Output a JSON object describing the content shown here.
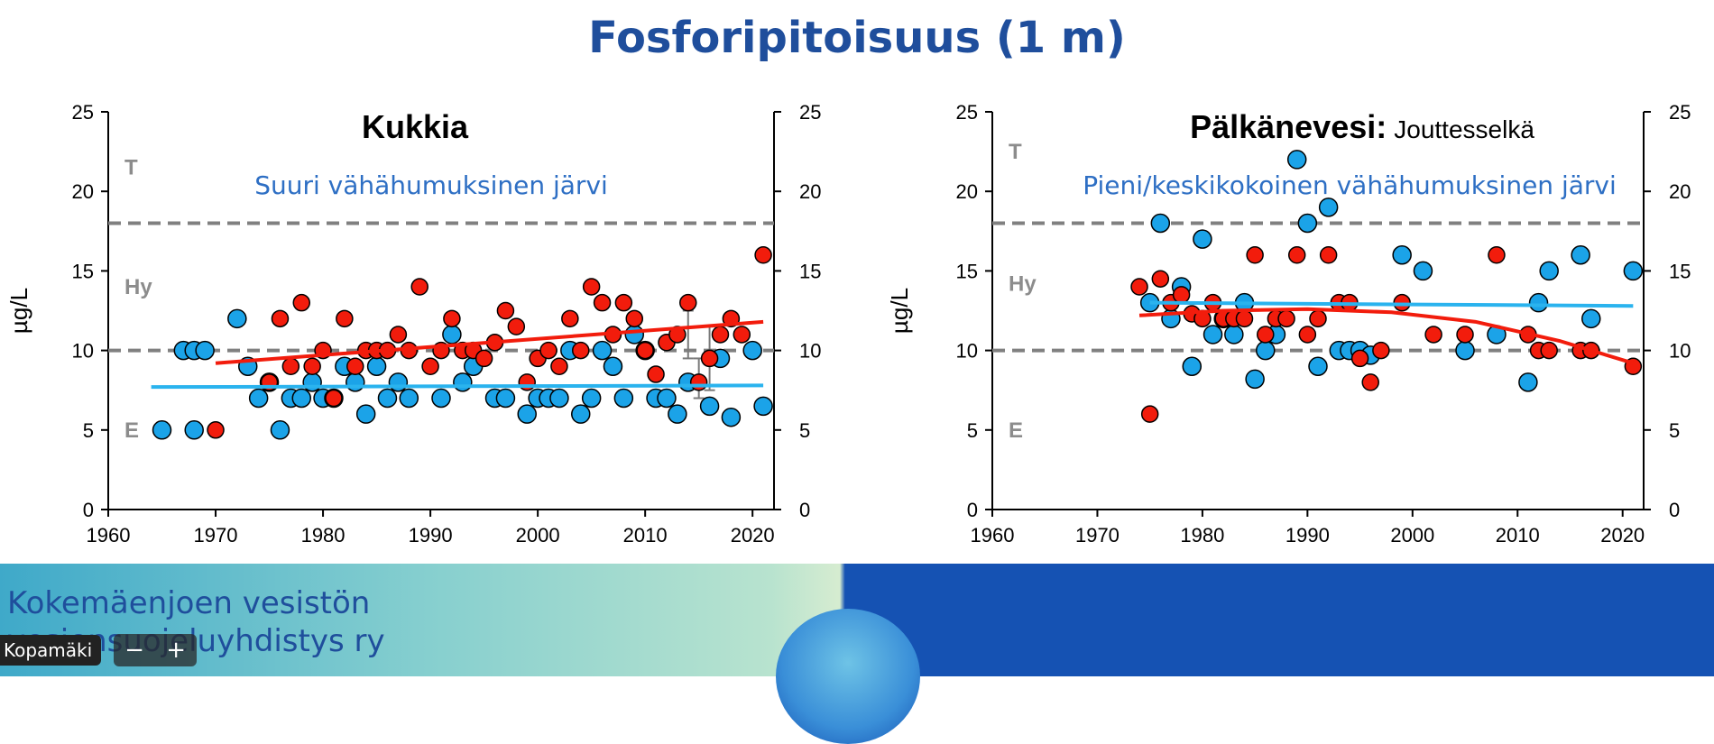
{
  "slide": {
    "title": "Fosforipitoisuus (1 m)",
    "footer_org_line1": "Kokemäenjoen vesistön",
    "footer_org_line2": "vesiensuojeluyhdistys ry",
    "user_label": "Kopamäki",
    "zoom_out_label": "−",
    "zoom_in_label": "+"
  },
  "colors": {
    "title": "#1f4e9c",
    "subtitle": "#2e6fc4",
    "red_series": "#f21c0c",
    "blue_series": "#1ba3e8",
    "red_trend": "#f21c0c",
    "blue_trend": "#2ab3ee",
    "threshold_line": "#808080",
    "class_label": "#8c8c8c"
  },
  "chart_data": [
    {
      "type": "scatter",
      "title": "Kukkia",
      "title_suffix": "",
      "subtitle": "Suuri vähähumuksinen järvi",
      "ylabel": "µg/L",
      "xlim": [
        1960,
        2022
      ],
      "ylim": [
        0,
        25
      ],
      "x_ticks": [
        1960,
        1970,
        1980,
        1990,
        2000,
        2010,
        2020
      ],
      "y_ticks": [
        0,
        5,
        10,
        15,
        20,
        25
      ],
      "dual_y_axis": true,
      "class_labels": [
        {
          "label": "T",
          "y": 21.5
        },
        {
          "label": "Hy",
          "y": 14
        },
        {
          "label": "E",
          "y": 5
        }
      ],
      "thresholds": [
        18,
        10
      ],
      "trend_lines": [
        {
          "series": "blue",
          "x": [
            1964,
            2021
          ],
          "y": [
            7.7,
            7.8
          ]
        },
        {
          "series": "red",
          "x": [
            1970,
            2021
          ],
          "y": [
            9.2,
            11.8
          ]
        }
      ],
      "error_bars": [
        {
          "x": 2014,
          "low": 9.5,
          "high": 12.5
        },
        {
          "x": 2015,
          "low": 7.0,
          "high": 9.5
        },
        {
          "x": 2016,
          "low": 7.5,
          "high": 11.5
        }
      ],
      "series": [
        {
          "key": "blue",
          "points": [
            [
              1965,
              5
            ],
            [
              1967,
              10
            ],
            [
              1968,
              5
            ],
            [
              1968,
              10
            ],
            [
              1969,
              10
            ],
            [
              1972,
              12
            ],
            [
              1973,
              9
            ],
            [
              1974,
              7
            ],
            [
              1975,
              8
            ],
            [
              1976,
              5
            ],
            [
              1977,
              7
            ],
            [
              1978,
              7
            ],
            [
              1979,
              8
            ],
            [
              1980,
              7
            ],
            [
              1981,
              7
            ],
            [
              1982,
              9
            ],
            [
              1983,
              8
            ],
            [
              1984,
              6
            ],
            [
              1985,
              9
            ],
            [
              1986,
              7
            ],
            [
              1987,
              8
            ],
            [
              1988,
              7
            ],
            [
              1991,
              7
            ],
            [
              1992,
              11
            ],
            [
              1993,
              8
            ],
            [
              1994,
              9
            ],
            [
              1996,
              7
            ],
            [
              1997,
              7
            ],
            [
              1999,
              6
            ],
            [
              2000,
              7
            ],
            [
              2001,
              7
            ],
            [
              2002,
              7
            ],
            [
              2003,
              10
            ],
            [
              2004,
              6
            ],
            [
              2005,
              7
            ],
            [
              2006,
              10
            ],
            [
              2007,
              9
            ],
            [
              2008,
              7
            ],
            [
              2009,
              11
            ],
            [
              2010,
              10
            ],
            [
              2011,
              7
            ],
            [
              2012,
              7
            ],
            [
              2013,
              6
            ],
            [
              2014,
              8
            ],
            [
              2016,
              6.5
            ],
            [
              2017,
              9.5
            ],
            [
              2018,
              5.8
            ],
            [
              2020,
              10
            ],
            [
              2021,
              6.5
            ]
          ]
        },
        {
          "key": "red",
          "points": [
            [
              1970,
              5
            ],
            [
              1975,
              8
            ],
            [
              1976,
              12
            ],
            [
              1977,
              9
            ],
            [
              1978,
              13
            ],
            [
              1979,
              9
            ],
            [
              1980,
              10
            ],
            [
              1981,
              7
            ],
            [
              1982,
              12
            ],
            [
              1983,
              9
            ],
            [
              1984,
              10
            ],
            [
              1985,
              10
            ],
            [
              1986,
              10
            ],
            [
              1987,
              11
            ],
            [
              1988,
              10
            ],
            [
              1989,
              14
            ],
            [
              1990,
              9
            ],
            [
              1991,
              10
            ],
            [
              1992,
              12
            ],
            [
              1993,
              10
            ],
            [
              1994,
              10
            ],
            [
              1995,
              9.5
            ],
            [
              1996,
              10.5
            ],
            [
              1997,
              12.5
            ],
            [
              1998,
              11.5
            ],
            [
              1999,
              8
            ],
            [
              2000,
              9.5
            ],
            [
              2001,
              10
            ],
            [
              2002,
              9
            ],
            [
              2003,
              12
            ],
            [
              2004,
              10
            ],
            [
              2005,
              14
            ],
            [
              2006,
              13
            ],
            [
              2007,
              11
            ],
            [
              2008,
              13
            ],
            [
              2009,
              12
            ],
            [
              2010,
              10
            ],
            [
              2011,
              8.5
            ],
            [
              2012,
              10.5
            ],
            [
              2013,
              11
            ],
            [
              2014,
              13
            ],
            [
              2015,
              8
            ],
            [
              2016,
              9.5
            ],
            [
              2017,
              11
            ],
            [
              2018,
              12
            ],
            [
              2019,
              11
            ],
            [
              2021,
              16
            ]
          ]
        }
      ]
    },
    {
      "type": "scatter",
      "title": "Pälkänevesi:",
      "title_suffix": "Jouttesselkä",
      "subtitle": "Pieni/keskikokoinen vähähumuksinen järvi",
      "ylabel": "µg/L",
      "xlim": [
        1960,
        2022
      ],
      "ylim": [
        0,
        25
      ],
      "x_ticks": [
        1960,
        1970,
        1980,
        1990,
        2000,
        2010,
        2020
      ],
      "y_ticks": [
        0,
        5,
        10,
        15,
        20,
        25
      ],
      "dual_y_axis": true,
      "class_labels": [
        {
          "label": "T",
          "y": 22.5
        },
        {
          "label": "Hy",
          "y": 14.2
        },
        {
          "label": "E",
          "y": 5
        }
      ],
      "thresholds": [
        18,
        10
      ],
      "trend_lines": [
        {
          "series": "blue",
          "x": [
            1975,
            2021
          ],
          "y": [
            13.0,
            12.8
          ]
        },
        {
          "series": "red",
          "x": [
            1974,
            1982,
            1990,
            1998,
            2006,
            2014,
            2021
          ],
          "y": [
            12.2,
            12.5,
            12.6,
            12.4,
            11.8,
            10.6,
            9.2
          ]
        }
      ],
      "error_bars": [],
      "series": [
        {
          "key": "blue",
          "points": [
            [
              1975,
              13
            ],
            [
              1976,
              18
            ],
            [
              1977,
              12
            ],
            [
              1978,
              14
            ],
            [
              1979,
              9
            ],
            [
              1980,
              17
            ],
            [
              1981,
              11
            ],
            [
              1982,
              12
            ],
            [
              1983,
              11
            ],
            [
              1984,
              13
            ],
            [
              1985,
              8.2
            ],
            [
              1986,
              10
            ],
            [
              1987,
              11
            ],
            [
              1989,
              22
            ],
            [
              1990,
              18
            ],
            [
              1991,
              9
            ],
            [
              1992,
              19
            ],
            [
              1993,
              10
            ],
            [
              1994,
              10
            ],
            [
              1995,
              10
            ],
            [
              1996,
              9.7
            ],
            [
              1999,
              16
            ],
            [
              2001,
              15
            ],
            [
              2005,
              10
            ],
            [
              2008,
              11
            ],
            [
              2011,
              8
            ],
            [
              2012,
              13
            ],
            [
              2013,
              15
            ],
            [
              2016,
              16
            ],
            [
              2017,
              12
            ],
            [
              2021,
              15
            ]
          ]
        },
        {
          "key": "red",
          "points": [
            [
              1974,
              14
            ],
            [
              1975,
              6
            ],
            [
              1976,
              14.5
            ],
            [
              1977,
              13
            ],
            [
              1978,
              13.5
            ],
            [
              1979,
              12.3
            ],
            [
              1980,
              12
            ],
            [
              1981,
              13
            ],
            [
              1982,
              12
            ],
            [
              1983,
              12
            ],
            [
              1984,
              12
            ],
            [
              1985,
              16
            ],
            [
              1986,
              11
            ],
            [
              1987,
              12
            ],
            [
              1988,
              12
            ],
            [
              1989,
              16
            ],
            [
              1990,
              11
            ],
            [
              1991,
              12
            ],
            [
              1992,
              16
            ],
            [
              1993,
              13
            ],
            [
              1994,
              13
            ],
            [
              1995,
              9.5
            ],
            [
              1996,
              8
            ],
            [
              1997,
              10
            ],
            [
              1999,
              13
            ],
            [
              2002,
              11
            ],
            [
              2005,
              11
            ],
            [
              2008,
              16
            ],
            [
              2011,
              11
            ],
            [
              2012,
              10
            ],
            [
              2013,
              10
            ],
            [
              2016,
              10
            ],
            [
              2017,
              10
            ],
            [
              2021,
              9
            ]
          ]
        }
      ]
    }
  ]
}
